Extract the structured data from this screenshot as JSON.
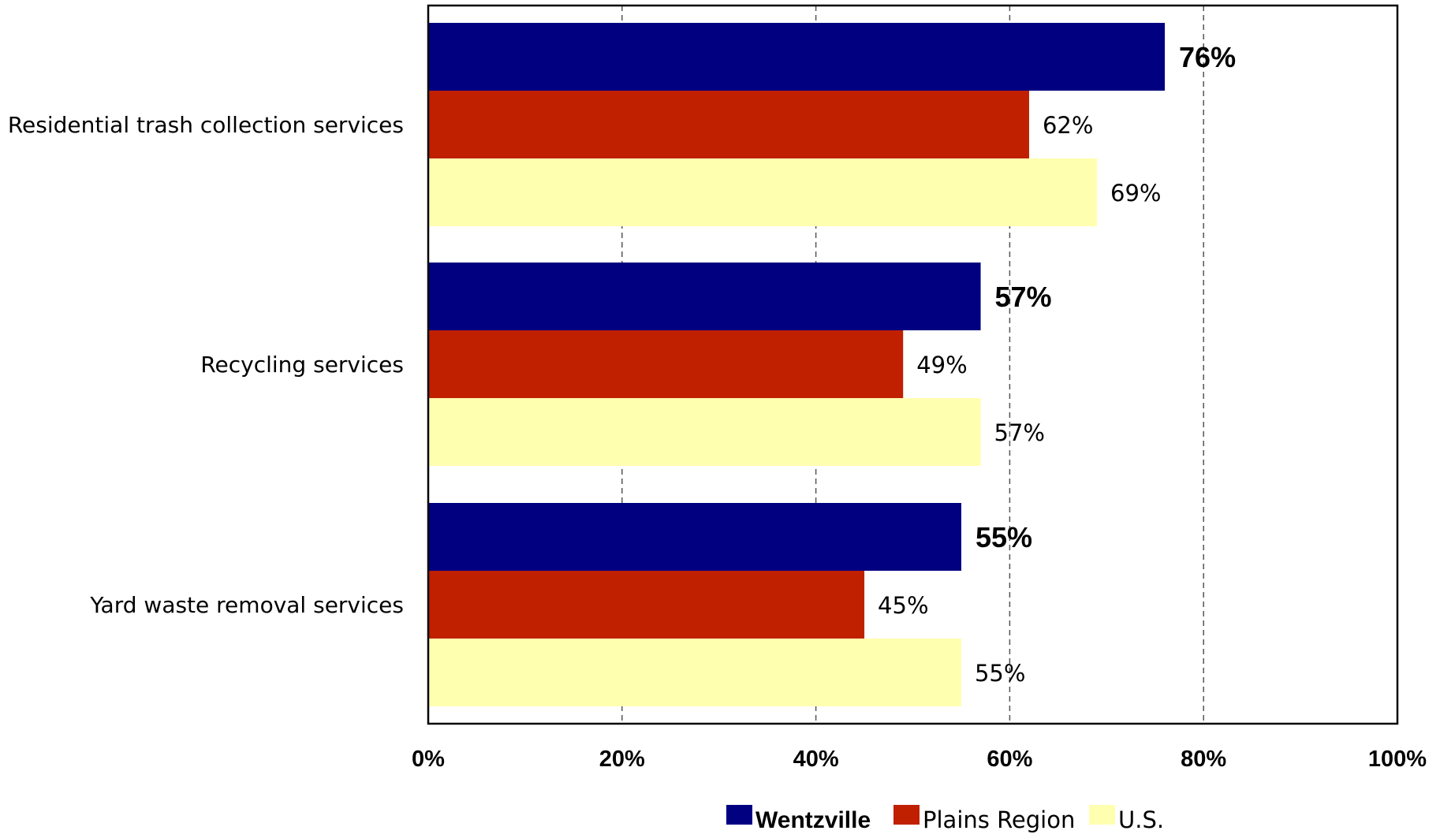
{
  "chart_data": {
    "type": "bar",
    "orientation": "horizontal",
    "categories": [
      "Residential trash collection services",
      "Recycling services",
      "Yard waste removal services"
    ],
    "series": [
      {
        "name": "Wentzville",
        "values": [
          76,
          57,
          55
        ],
        "labels": [
          "76%",
          "57%",
          "55%"
        ],
        "color": "#000080",
        "label_bold": true
      },
      {
        "name": "Plains Region",
        "values": [
          62,
          49,
          45
        ],
        "labels": [
          "62%",
          "49%",
          "45%"
        ],
        "color": "#C02000",
        "label_bold": false
      },
      {
        "name": "U.S.",
        "values": [
          69,
          57,
          55
        ],
        "labels": [
          "69%",
          "57%",
          "55%"
        ],
        "color": "#FFFFB0",
        "label_bold": false
      }
    ],
    "xlim": [
      0,
      100
    ],
    "xticks": [
      0,
      20,
      40,
      60,
      80,
      100
    ],
    "xtick_labels": [
      "0%",
      "20%",
      "40%",
      "60%",
      "80%",
      "100%"
    ],
    "grid": "vertical-dashed",
    "legend_position": "bottom-center",
    "title": "",
    "xlabel": "",
    "ylabel": ""
  }
}
